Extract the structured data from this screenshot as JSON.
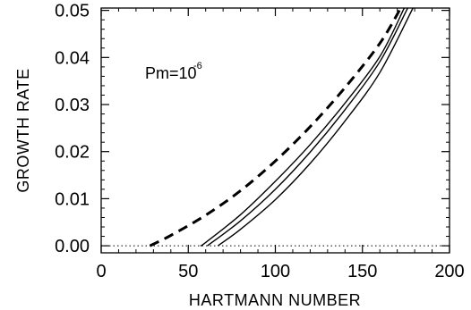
{
  "chart_data": {
    "type": "line",
    "title": "",
    "xlabel": "HARTMANN NUMBER",
    "ylabel": "GROWTH RATE",
    "xlim": [
      0,
      200
    ],
    "ylim": [
      -0.0015,
      0.0505
    ],
    "xticks": [
      0,
      50,
      100,
      150,
      200
    ],
    "xtick_labels": [
      "0",
      "50",
      "100",
      "150",
      "200"
    ],
    "yticks": [
      0.0,
      0.01,
      0.02,
      0.03,
      0.04,
      0.05
    ],
    "ytick_labels": [
      "0.00",
      "0.01",
      "0.02",
      "0.03",
      "0.04",
      "0.05"
    ],
    "grid": false,
    "annotation": {
      "base": "Pm=10",
      "exponent": "-6"
    },
    "zero_line": {
      "y": 0.0,
      "style": "dotted"
    },
    "series": [
      {
        "style": "dashed",
        "x": [
          28,
          40,
          60,
          80,
          100,
          120,
          140,
          160,
          172
        ],
        "y": [
          0.0,
          0.0022,
          0.0065,
          0.0117,
          0.018,
          0.0253,
          0.0336,
          0.043,
          0.0505
        ]
      },
      {
        "style": "solid",
        "x": [
          57,
          60,
          80,
          100,
          120,
          140,
          160,
          174
        ],
        "y": [
          0.0,
          0.0007,
          0.0066,
          0.0137,
          0.0215,
          0.0303,
          0.0402,
          0.0505
        ]
      },
      {
        "style": "solid",
        "x": [
          61,
          80,
          100,
          120,
          140,
          160,
          176
        ],
        "y": [
          0.0,
          0.0053,
          0.012,
          0.0199,
          0.0289,
          0.0391,
          0.0505
        ]
      },
      {
        "style": "solid",
        "x": [
          67,
          80,
          100,
          120,
          140,
          160,
          179
        ],
        "y": [
          0.0,
          0.0035,
          0.0098,
          0.0175,
          0.0265,
          0.0368,
          0.0505
        ]
      }
    ]
  }
}
